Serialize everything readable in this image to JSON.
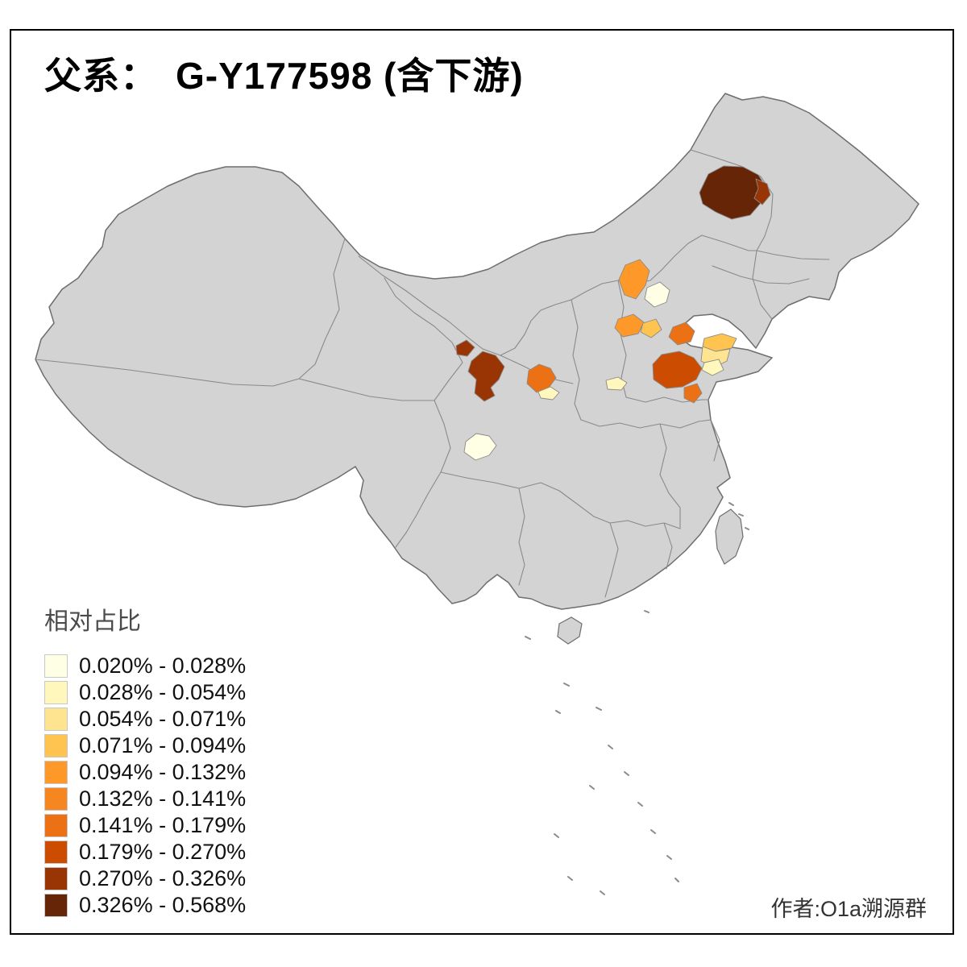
{
  "page": {
    "title_prefix": "父系：",
    "title_value": "G-Y177598 (含下游)",
    "credit": "作者:O1a溯源群"
  },
  "legend": {
    "title": "相对占比",
    "bins": [
      {
        "label": "0.020% - 0.028%",
        "color": "#FFFFE5"
      },
      {
        "label": "0.028% - 0.054%",
        "color": "#FFF7BC"
      },
      {
        "label": "0.054% - 0.071%",
        "color": "#FEE391"
      },
      {
        "label": "0.071% - 0.094%",
        "color": "#FEC44F"
      },
      {
        "label": "0.094% - 0.132%",
        "color": "#FE9929"
      },
      {
        "label": "0.132% - 0.141%",
        "color": "#F58620"
      },
      {
        "label": "0.141% - 0.179%",
        "color": "#EC7014"
      },
      {
        "label": "0.179% - 0.270%",
        "color": "#CC4C02"
      },
      {
        "label": "0.270% - 0.326%",
        "color": "#993404"
      },
      {
        "label": "0.326% - 0.568%",
        "color": "#662506"
      }
    ]
  },
  "map": {
    "background": "#FFFFFF",
    "frame_color": "#000000",
    "base_fill": "#D3D3D3",
    "outline_color": "#6E6E6E",
    "boundary_color": "#8A8A8A",
    "regions": {
      "ne_main": 9,
      "ne_east": 8,
      "hebei_nw": 4,
      "beijing": 0,
      "shanxi_a": 4,
      "shanxi_b": 3,
      "hebei_s": 6,
      "shandong_tip_gold": 3,
      "shandong_tip_pale": 2,
      "shandong_tip_cream": 1,
      "shandong_main": 7,
      "shandong_s": 6,
      "gansu_main": 8,
      "gansu_nw": 8,
      "shaanxi": 6,
      "shaanxi_pale": 1,
      "henan_n": 1,
      "sichuan": 0
    }
  }
}
